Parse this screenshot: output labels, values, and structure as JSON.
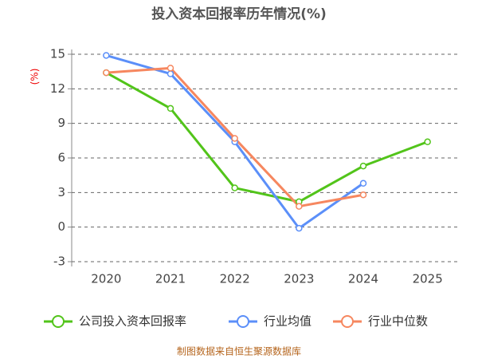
{
  "chart_data": {
    "type": "line",
    "title": "投入资本回报率历年情况(%)",
    "ylabel": "(%)",
    "source": "制图数据来自恒生聚源数据库",
    "categories": [
      "2020",
      "2021",
      "2022",
      "2023",
      "2024",
      "2025"
    ],
    "series": [
      {
        "name": "公司投入资本回报率",
        "color": "#52c41a",
        "values": [
          13.4,
          10.3,
          3.4,
          2.2,
          5.3,
          7.4
        ]
      },
      {
        "name": "行业均值",
        "color": "#5b8ff9",
        "values": [
          14.9,
          13.3,
          7.4,
          -0.1,
          3.8,
          null
        ]
      },
      {
        "name": "行业中位数",
        "color": "#f6875f",
        "values": [
          13.4,
          13.8,
          7.7,
          1.8,
          2.8,
          null
        ]
      }
    ],
    "ylim": [
      -3,
      15
    ],
    "yticks": [
      -3,
      0,
      3,
      6,
      9,
      12,
      15
    ],
    "grid": true
  }
}
